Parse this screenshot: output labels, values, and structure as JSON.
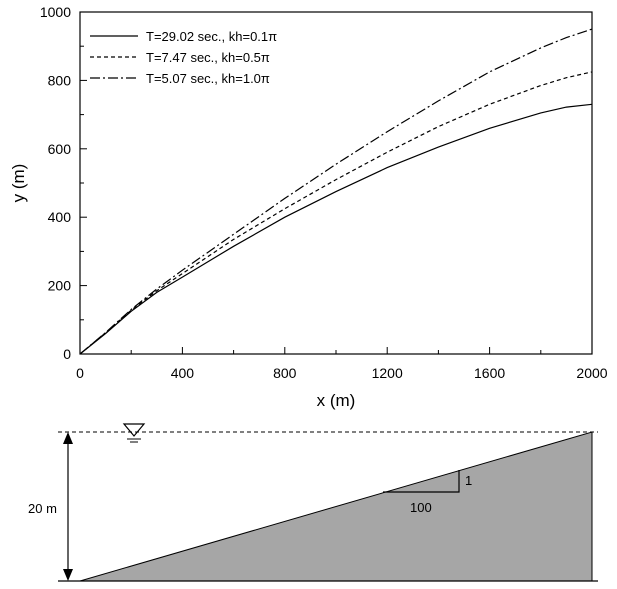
{
  "chart_data": {
    "type": "line",
    "xlabel": "x (m)",
    "ylabel": "y (m)",
    "xlim": [
      0,
      2000
    ],
    "ylim": [
      0,
      1000
    ],
    "xticks": [
      "0",
      "400",
      "800",
      "1200",
      "1600",
      "2000"
    ],
    "yticks": [
      "0",
      "200",
      "400",
      "600",
      "800",
      "1000"
    ],
    "grid": false,
    "legend_position": "top-left",
    "series": [
      {
        "name": "T=29.02 sec., kh=0.1π",
        "style": "solid",
        "x": [
          0,
          100,
          200,
          300,
          400,
          600,
          800,
          1000,
          1200,
          1400,
          1600,
          1800,
          1900,
          2000
        ],
        "y": [
          0,
          60,
          125,
          180,
          225,
          315,
          400,
          475,
          545,
          605,
          660,
          705,
          722,
          730
        ]
      },
      {
        "name": "T=7.47 sec., kh=0.5π",
        "style": "dashed",
        "x": [
          0,
          100,
          200,
          300,
          400,
          600,
          800,
          1000,
          1200,
          1400,
          1600,
          1800,
          1900,
          2000
        ],
        "y": [
          0,
          62,
          128,
          185,
          235,
          335,
          425,
          510,
          590,
          665,
          730,
          785,
          808,
          825
        ]
      },
      {
        "name": "T=5.07 sec., kh=1.0π",
        "style": "dashdot",
        "x": [
          0,
          100,
          200,
          300,
          400,
          600,
          800,
          1000,
          1200,
          1400,
          1600,
          1800,
          1900,
          2000
        ],
        "y": [
          0,
          63,
          130,
          190,
          245,
          350,
          455,
          555,
          650,
          740,
          825,
          895,
          925,
          950
        ]
      }
    ]
  },
  "diagram": {
    "depth_label": "20 m",
    "slope_rise_label": "1",
    "slope_run_label": "100",
    "fill_color": "#a6a6a6"
  }
}
